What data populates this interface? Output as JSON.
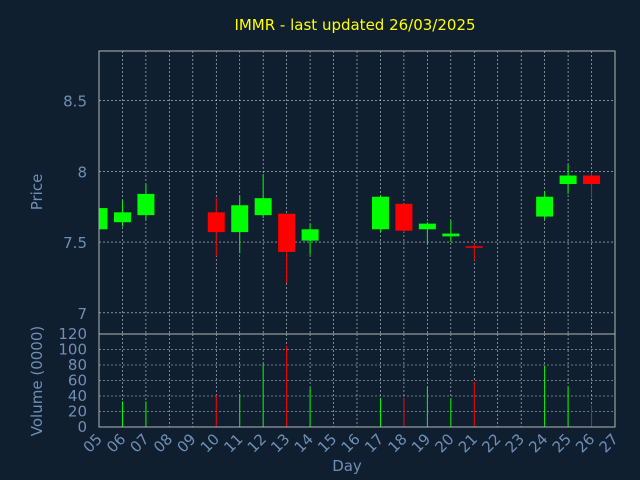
{
  "title": "IMMR - last updated 26/03/2025",
  "colors": {
    "background": "#0f1f30",
    "axis": "#b4b4b4",
    "grid": "#d0d0d0",
    "label": "#6f8fb4",
    "title": "#ffff00",
    "up": "#00ff00",
    "down": "#ff0000"
  },
  "chart_data": [
    {
      "type": "candlestick",
      "ylabel": "Price",
      "ylim": [
        6.85,
        8.85
      ],
      "yticks": [
        7,
        7.5,
        8,
        8.5
      ],
      "ytick_labels": [
        "7",
        "7.5",
        "8",
        "8.5"
      ],
      "grid": true,
      "days": [
        "05",
        "06",
        "07",
        "08",
        "09",
        "10",
        "11",
        "12",
        "13",
        "14",
        "15",
        "16",
        "17",
        "18",
        "19",
        "20",
        "21",
        "22",
        "23",
        "24",
        "25",
        "26",
        "27"
      ],
      "candles": [
        {
          "day": "05",
          "open": 7.59,
          "high": 7.75,
          "low": 7.57,
          "close": 7.74
        },
        {
          "day": "06",
          "open": 7.64,
          "high": 7.79,
          "low": 7.61,
          "close": 7.71
        },
        {
          "day": "07",
          "open": 7.69,
          "high": 7.91,
          "low": 7.66,
          "close": 7.84
        },
        {
          "day": "10",
          "open": 7.71,
          "high": 7.81,
          "low": 7.4,
          "close": 7.57
        },
        {
          "day": "11",
          "open": 7.57,
          "high": 7.83,
          "low": 7.42,
          "close": 7.76
        },
        {
          "day": "12",
          "open": 7.69,
          "high": 7.98,
          "low": 7.67,
          "close": 7.81
        },
        {
          "day": "13",
          "open": 7.7,
          "high": 7.7,
          "low": 7.21,
          "close": 7.43
        },
        {
          "day": "14",
          "open": 7.51,
          "high": 7.63,
          "low": 7.41,
          "close": 7.59
        },
        {
          "day": "17",
          "open": 7.59,
          "high": 7.83,
          "low": 7.57,
          "close": 7.82
        },
        {
          "day": "18",
          "open": 7.77,
          "high": 7.77,
          "low": 7.57,
          "close": 7.58
        },
        {
          "day": "19",
          "open": 7.59,
          "high": 7.64,
          "low": 7.48,
          "close": 7.63
        },
        {
          "day": "20",
          "open": 7.54,
          "high": 7.65,
          "low": 7.5,
          "close": 7.56
        },
        {
          "day": "21",
          "open": 7.47,
          "high": 7.49,
          "low": 7.37,
          "close": 7.46
        },
        {
          "day": "24",
          "open": 7.68,
          "high": 7.86,
          "low": 7.66,
          "close": 7.82
        },
        {
          "day": "25",
          "open": 7.91,
          "high": 8.05,
          "low": 7.84,
          "close": 7.97
        },
        {
          "day": "26",
          "open": 7.97,
          "high": 7.99,
          "low": 7.81,
          "close": 7.91
        }
      ]
    },
    {
      "type": "bar",
      "ylabel": "Volume (0000)",
      "xlabel": "Day",
      "ylim": [
        0,
        120
      ],
      "yticks": [
        0,
        20,
        40,
        60,
        80,
        100,
        120
      ],
      "grid": true,
      "bars": [
        {
          "day": "05",
          "value": 0,
          "direction": "up"
        },
        {
          "day": "06",
          "value": 33,
          "direction": "up"
        },
        {
          "day": "07",
          "value": 33,
          "direction": "up"
        },
        {
          "day": "10",
          "value": 41,
          "direction": "down"
        },
        {
          "day": "11",
          "value": 42,
          "direction": "up"
        },
        {
          "day": "12",
          "value": 82,
          "direction": "up"
        },
        {
          "day": "13",
          "value": 105,
          "direction": "down"
        },
        {
          "day": "14",
          "value": 51,
          "direction": "up"
        },
        {
          "day": "17",
          "value": 37,
          "direction": "up"
        },
        {
          "day": "18",
          "value": 37,
          "direction": "down"
        },
        {
          "day": "19",
          "value": 52,
          "direction": "up"
        },
        {
          "day": "20",
          "value": 37,
          "direction": "up"
        },
        {
          "day": "21",
          "value": 58,
          "direction": "down"
        },
        {
          "day": "24",
          "value": 79,
          "direction": "up"
        },
        {
          "day": "25",
          "value": 52,
          "direction": "up"
        },
        {
          "day": "26",
          "value": 28,
          "direction": "down"
        }
      ]
    }
  ]
}
